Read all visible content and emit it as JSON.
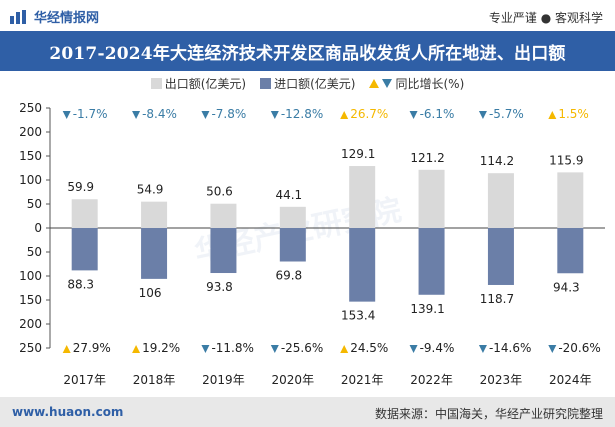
{
  "header": {
    "brand": "华经情报网",
    "slogan": "专业严谨 ● 客观科学"
  },
  "title": "2017-2024年大连经济技术开发区商品收发货人所在地进、出口额",
  "legend": {
    "export_label": "出口额(亿美元)",
    "import_label": "进口额(亿美元)",
    "growth_label": "同比增长(%)"
  },
  "colors": {
    "brand": "#2f5fa6",
    "export_bar": "#d9d9d9",
    "import_bar": "#6b7fa8",
    "up": "#f5b800",
    "down": "#3a7ca5"
  },
  "chart_data": {
    "type": "bar",
    "categories": [
      "2017年",
      "2018年",
      "2019年",
      "2020年",
      "2021年",
      "2022年",
      "2023年",
      "2024年"
    ],
    "series": [
      {
        "name": "出口额(亿美元)",
        "values": [
          59.9,
          54.9,
          50.6,
          44.1,
          129.1,
          121.2,
          114.2,
          115.9
        ],
        "direction": "up"
      },
      {
        "name": "进口额(亿美元)",
        "values": [
          88.3,
          106,
          93.8,
          69.8,
          153.4,
          139.1,
          118.7,
          94.3
        ],
        "direction": "down"
      }
    ],
    "export_growth_labels": [
      "-1.7%",
      "-8.4%",
      "-7.8%",
      "-12.8%",
      "26.7%",
      "-6.1%",
      "-5.7%",
      "1.5%"
    ],
    "export_growth_values": [
      -1.7,
      -8.4,
      -7.8,
      -12.8,
      26.7,
      -6.1,
      -5.7,
      1.5
    ],
    "import_growth_labels": [
      "27.9%",
      "19.2%",
      "-11.8%",
      "-25.6%",
      "24.5%",
      "-9.4%",
      "-14.6%",
      "-20.6%"
    ],
    "import_growth_values": [
      27.9,
      19.2,
      -11.8,
      -25.6,
      24.5,
      -9.4,
      -14.6,
      -20.6
    ],
    "ylim": [
      -250,
      250
    ],
    "yticks": [
      250,
      200,
      150,
      100,
      50,
      0,
      50,
      100,
      150,
      200,
      250
    ],
    "grid": false
  },
  "watermark": "华经产业研究院",
  "footer": {
    "site": "www.huaon.com",
    "source": "数据来源：中国海关，华经产业研究院整理"
  }
}
